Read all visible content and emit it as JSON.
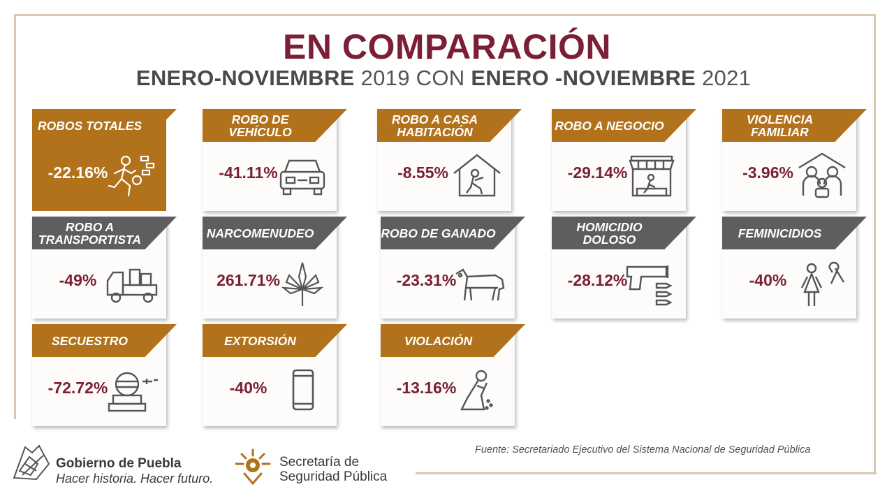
{
  "header": {
    "title": "EN COMPARACIÓN",
    "subtitle_a": "ENERO-NOVIEMBRE",
    "subtitle_b": " 2019 CON ",
    "subtitle_c": "ENERO -NOVIEMBRE",
    "subtitle_d": " 2021"
  },
  "colors": {
    "gold": "#b1721b",
    "gray": "#5e5e5e",
    "maroon": "#7a1f35"
  },
  "cards": [
    {
      "label": "ROBOS TOTALES",
      "value": "-22.16%",
      "icon": "running-thief-icon"
    },
    {
      "label": "ROBO DE VEHÍCULO",
      "value": "-41.11%",
      "icon": "car-icon"
    },
    {
      "label": "ROBO A CASA HABITACIÓN",
      "value": "-8.55%",
      "icon": "house-burglar-icon"
    },
    {
      "label": "ROBO A NEGOCIO",
      "value": "-29.14%",
      "icon": "store-icon"
    },
    {
      "label": "VIOLENCIA FAMILIAR",
      "value": "-3.96%",
      "icon": "family-icon"
    },
    {
      "label": "ROBO A TRANSPORTISTA",
      "value": "-49%",
      "icon": "truck-icon"
    },
    {
      "label": "NARCOMENUDEO",
      "value": "261.71%",
      "icon": "cannabis-leaf-icon"
    },
    {
      "label": "ROBO DE GANADO",
      "value": "-23.31%",
      "icon": "cow-icon"
    },
    {
      "label": "HOMICIDIO DOLOSO",
      "value": "-28.12%",
      "icon": "gun-icon"
    },
    {
      "label": "FEMINICIDIOS",
      "value": "-40%",
      "icon": "woman-ribbon-icon"
    },
    {
      "label": "SECUESTRO",
      "value": "-72.72%",
      "icon": "hostage-icon"
    },
    {
      "label": "EXTORSIÓN",
      "value": "-40%",
      "icon": "phone-icon"
    },
    {
      "label": "VIOLACIÓN",
      "value": "-13.16%",
      "icon": "crying-woman-icon"
    }
  ],
  "footer": {
    "source": "Fuente: Secretariado Ejecutivo del Sistema Nacional de Seguridad Pública",
    "gob_name": "Gobierno de Puebla",
    "gob_slogan": "Hacer historia. Hacer futuro.",
    "ssp_line1": "Secretaría de",
    "ssp_line2": "Seguridad Pública"
  }
}
